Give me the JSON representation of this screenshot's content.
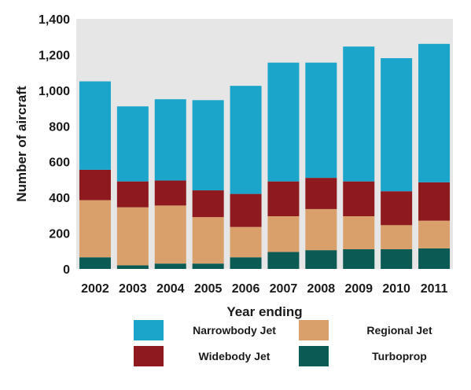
{
  "chart_data": {
    "type": "bar",
    "stacked": true,
    "title": "",
    "xlabel": "Year ending",
    "ylabel": "Number of aircraft",
    "ylim": [
      0,
      1400
    ],
    "yticks": [
      0,
      200,
      400,
      600,
      800,
      1000,
      1200,
      1400
    ],
    "ytick_labels": [
      "0",
      "200",
      "400",
      "600",
      "800",
      "1,000",
      "1,200",
      "1,400"
    ],
    "grid": false,
    "legend_position": "bottom",
    "categories": [
      "2002",
      "2003",
      "2004",
      "2005",
      "2006",
      "2007",
      "2008",
      "2009",
      "2010",
      "2011"
    ],
    "series": [
      {
        "name": "Turboprop",
        "color": "#0b5a54",
        "values": [
          65,
          20,
          30,
          30,
          65,
          95,
          105,
          110,
          110,
          115
        ]
      },
      {
        "name": "Regional Jet",
        "color": "#d9a06b",
        "values": [
          320,
          325,
          325,
          260,
          170,
          200,
          230,
          185,
          135,
          155
        ]
      },
      {
        "name": "Widebody Jet",
        "color": "#8e1a1f",
        "values": [
          170,
          145,
          140,
          150,
          185,
          195,
          175,
          195,
          190,
          215
        ]
      },
      {
        "name": "Narrowbody Jet",
        "color": "#1ba5cb",
        "values": [
          495,
          420,
          455,
          505,
          605,
          665,
          645,
          755,
          745,
          775
        ]
      }
    ],
    "legend_order": [
      "Narrowbody Jet",
      "Regional Jet",
      "Widebody Jet",
      "Turboprop"
    ]
  }
}
